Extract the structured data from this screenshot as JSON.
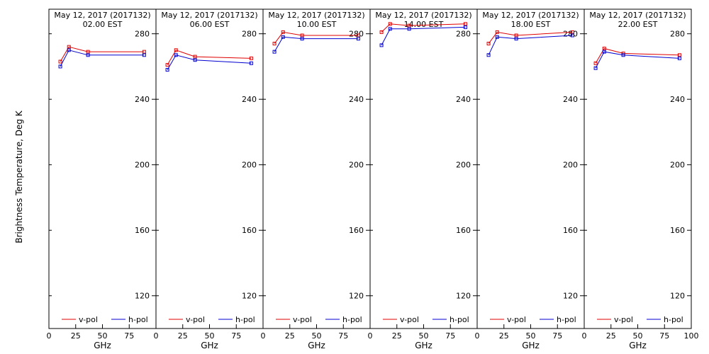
{
  "figure": {
    "ylabel": "Brightness Temperature, Deg K",
    "xlabel": "GHz",
    "colors": {
      "v": "#e00000",
      "h": "#0000d0"
    }
  },
  "chart_data": [
    {
      "type": "line",
      "title": "May 12, 2017 (2017132)",
      "subtitle": "02.00 EST",
      "xlabel": "GHz",
      "ylabel": "Brightness Temperature, Deg K",
      "xlim": [
        0,
        100
      ],
      "ylim": [
        100,
        295
      ],
      "xticks": [
        0,
        25,
        50,
        75,
        100
      ],
      "yticks": [
        120,
        160,
        200,
        240,
        280
      ],
      "legend": "bottom",
      "series": [
        {
          "name": "v-pol",
          "x": [
            10.65,
            18.7,
            36.5,
            89
          ],
          "y": [
            263,
            272,
            269,
            269
          ]
        },
        {
          "name": "h-pol",
          "x": [
            10.65,
            18.7,
            36.5,
            89
          ],
          "y": [
            260,
            270,
            267,
            267
          ]
        }
      ]
    },
    {
      "type": "line",
      "title": "May 12, 2017 (2017132)",
      "subtitle": "06.00 EST",
      "xlabel": "GHz",
      "xlim": [
        0,
        100
      ],
      "ylim": [
        100,
        295
      ],
      "xticks": [
        0,
        25,
        50,
        75,
        100
      ],
      "yticks": [
        120,
        160,
        200,
        240,
        280
      ],
      "legend": "bottom",
      "series": [
        {
          "name": "v-pol",
          "x": [
            10.65,
            18.7,
            36.5,
            89
          ],
          "y": [
            261,
            270,
            266,
            265
          ]
        },
        {
          "name": "h-pol",
          "x": [
            10.65,
            18.7,
            36.5,
            89
          ],
          "y": [
            258,
            267,
            264,
            262
          ]
        }
      ]
    },
    {
      "type": "line",
      "title": "May 12, 2017 (2017132)",
      "subtitle": "10.00 EST",
      "xlabel": "GHz",
      "xlim": [
        0,
        100
      ],
      "ylim": [
        100,
        295
      ],
      "xticks": [
        0,
        25,
        50,
        75,
        100
      ],
      "yticks": [
        120,
        160,
        200,
        240,
        280
      ],
      "legend": "bottom",
      "series": [
        {
          "name": "v-pol",
          "x": [
            10.65,
            18.7,
            36.5,
            89
          ],
          "y": [
            274,
            281,
            279,
            279
          ]
        },
        {
          "name": "h-pol",
          "x": [
            10.65,
            18.7,
            36.5,
            89
          ],
          "y": [
            269,
            278,
            277,
            277
          ]
        }
      ]
    },
    {
      "type": "line",
      "title": "May 12, 2017 (2017132)",
      "subtitle": "14.00 EST",
      "xlabel": "GHz",
      "xlim": [
        0,
        100
      ],
      "ylim": [
        100,
        295
      ],
      "xticks": [
        0,
        25,
        50,
        75,
        100
      ],
      "yticks": [
        120,
        160,
        200,
        240,
        280
      ],
      "legend": "bottom",
      "series": [
        {
          "name": "v-pol",
          "x": [
            10.65,
            18.7,
            36.5,
            89
          ],
          "y": [
            281,
            286,
            285,
            286
          ]
        },
        {
          "name": "h-pol",
          "x": [
            10.65,
            18.7,
            36.5,
            89
          ],
          "y": [
            273,
            283,
            283,
            284
          ]
        }
      ]
    },
    {
      "type": "line",
      "title": "May 12, 2017 (2017132)",
      "subtitle": "18.00 EST",
      "xlabel": "GHz",
      "xlim": [
        0,
        100
      ],
      "ylim": [
        100,
        295
      ],
      "xticks": [
        0,
        25,
        50,
        75,
        100
      ],
      "yticks": [
        120,
        160,
        200,
        240,
        280
      ],
      "legend": "bottom",
      "series": [
        {
          "name": "v-pol",
          "x": [
            10.65,
            18.7,
            36.5,
            89
          ],
          "y": [
            274,
            281,
            279,
            281
          ]
        },
        {
          "name": "h-pol",
          "x": [
            10.65,
            18.7,
            36.5,
            89
          ],
          "y": [
            267,
            278,
            277,
            279
          ]
        }
      ]
    },
    {
      "type": "line",
      "title": "May 12, 2017 (2017132)",
      "subtitle": "22.00 EST",
      "xlabel": "GHz",
      "xlim": [
        0,
        100
      ],
      "ylim": [
        100,
        295
      ],
      "xticks": [
        0,
        25,
        50,
        75,
        100
      ],
      "yticks": [
        120,
        160,
        200,
        240,
        280
      ],
      "legend": "bottom",
      "series": [
        {
          "name": "v-pol",
          "x": [
            10.65,
            18.7,
            36.5,
            89
          ],
          "y": [
            262,
            271,
            268,
            267
          ]
        },
        {
          "name": "h-pol",
          "x": [
            10.65,
            18.7,
            36.5,
            89
          ],
          "y": [
            259,
            269,
            267,
            265
          ]
        }
      ]
    }
  ]
}
